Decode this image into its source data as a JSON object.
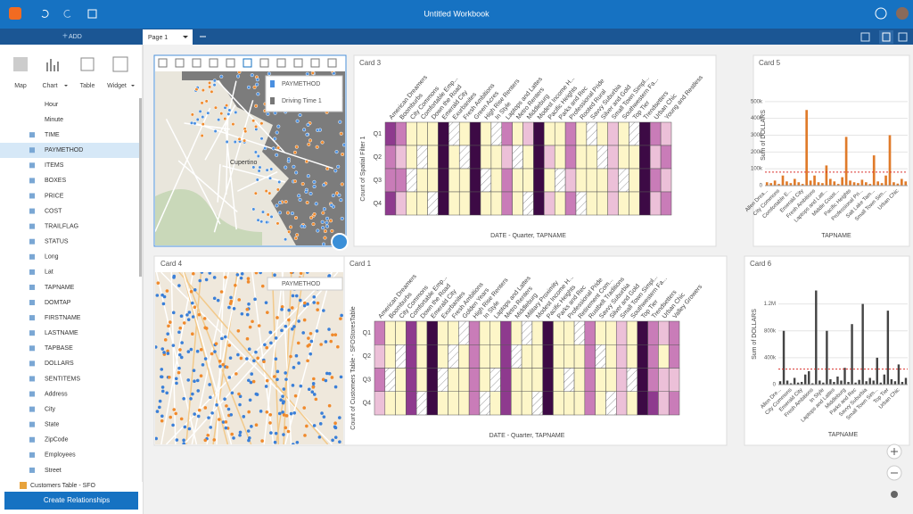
{
  "app": {
    "title": "Untitled Workbook",
    "add_button": "ADD",
    "page_tab": "Page 1",
    "tools": [
      "Map",
      "Chart",
      "Table",
      "Widget"
    ],
    "fields": [
      "Hour",
      "Minute",
      "TIME",
      "PAYMETHOD",
      "ITEMS",
      "BOXES",
      "PRICE",
      "COST",
      "TRAILFLAG",
      "STATUS",
      "Long",
      "Lat",
      "TAPNAME",
      "DOMTAP",
      "FIRSTNAME",
      "LASTNAME",
      "TAPBASE",
      "DOLLARS",
      "SENTITEMS",
      "Address",
      "City",
      "State",
      "ZipCode",
      "Employees",
      "Street"
    ],
    "dataset": "Customers Table - SFO",
    "create_button": "Create Relationships"
  },
  "maps": [
    {
      "legend": [
        "PAYMETHOD",
        "Driving Time 1"
      ],
      "place": "Cupertino"
    },
    {
      "title": "Card 4",
      "legend": [
        "PAYMETHOD"
      ]
    }
  ],
  "chart_data": [
    {
      "type": "heatmap",
      "title": "Card 3",
      "categories": [
        "American Dreamers",
        "Boomburbs",
        "City Commons",
        "Comfortable Emp...",
        "Down the Road",
        "Emerald City",
        "Exurbanites",
        "Fresh Ambitions",
        "Green Acres",
        "High Rise Renters",
        "In Style",
        "Laptops and Lattes",
        "Metro Renters",
        "Middleburg",
        "Modest Income H...",
        "Pacific Heights",
        "Parks and Rec",
        "Professional Pride",
        "Rooted Rural",
        "Savvy Suburbia",
        "Silver and Gold",
        "Small Town Simpl...",
        "Southwestern Fa...",
        "Top Tier",
        "Trendsetters",
        "Urban Chic",
        "Young and Restless"
      ],
      "rows": [
        "Q1",
        "Q2",
        "Q3",
        "Q4"
      ],
      "values": [
        [
          4,
          3,
          1,
          1,
          1,
          5,
          null,
          1,
          5,
          1,
          null,
          3,
          1,
          2,
          5,
          1,
          1,
          3,
          1,
          null,
          1,
          2,
          1,
          null,
          5,
          3,
          2
        ],
        [
          3,
          2,
          1,
          null,
          1,
          5,
          1,
          null,
          5,
          1,
          1,
          2,
          null,
          1,
          5,
          2,
          1,
          3,
          1,
          1,
          null,
          2,
          1,
          1,
          5,
          2,
          3
        ],
        [
          3,
          3,
          null,
          1,
          1,
          5,
          1,
          1,
          5,
          null,
          1,
          3,
          1,
          1,
          5,
          1,
          null,
          2,
          1,
          1,
          1,
          2,
          null,
          1,
          5,
          3,
          2
        ],
        [
          4,
          2,
          1,
          1,
          null,
          5,
          1,
          1,
          5,
          1,
          1,
          3,
          1,
          null,
          5,
          2,
          1,
          3,
          null,
          1,
          1,
          2,
          1,
          1,
          5,
          2,
          3
        ]
      ],
      "colors": [
        "#fdf6c8",
        "#ecc0d8",
        "#c97cb8",
        "#8e3a8e",
        "#3d0a45"
      ],
      "y_label": "Count of Spatial Filter 1",
      "x_label": "DATE - Quarter, TAPNAME"
    },
    {
      "type": "bar",
      "title": "Card 5",
      "categories": [
        "Allen Drea...",
        null,
        null,
        "City Commons",
        null,
        null,
        "Comfortable E...",
        null,
        null,
        "Emerald City",
        null,
        null,
        "Fresh Ambitions",
        null,
        null,
        "Laptops and Latt...",
        null,
        null,
        "Middle Coast...",
        null,
        null,
        "Pacific Heights",
        null,
        null,
        "Professional Pri...",
        null,
        null,
        "Salt Lake Tam...",
        null,
        null,
        "Small Town Sim...",
        null,
        null,
        "Urban Chic",
        null,
        null
      ],
      "values": [
        20000,
        15000,
        30000,
        10000,
        60000,
        25000,
        15000,
        40000,
        20000,
        10000,
        450000,
        30000,
        60000,
        20000,
        15000,
        120000,
        40000,
        25000,
        10000,
        50000,
        290000,
        30000,
        20000,
        15000,
        35000,
        20000,
        10000,
        180000,
        25000,
        15000,
        60000,
        300000,
        20000,
        12000,
        40000,
        25000
      ],
      "color": "#e07b2a",
      "ylim": [
        0,
        600000
      ],
      "yticks": [
        0,
        {
          "value": 100000,
          "label": "100k"
        },
        {
          "value": 200000,
          "label": "200k"
        },
        {
          "value": 300000,
          "label": "300k"
        },
        {
          "value": 400000,
          "label": "400k"
        },
        {
          "value": 500000,
          "label": "500k"
        }
      ],
      "reference_line": 80000,
      "y_label": "Sum of DOLLARS",
      "x_label": "TAPNAME"
    },
    {
      "type": "heatmap",
      "title": "Card 1",
      "categories": [
        "American Dreamers",
        "Boomburbs",
        "City Commons",
        "Comfortable Emp...",
        "Down the Road",
        "Emerald City",
        "Exurbanites",
        "Fresh Ambitions",
        "Golden Years",
        "High Rise Renters",
        "In Style",
        "Laptops and Lattes",
        "Metro Renters",
        "Middleburg",
        "Military Proximity",
        "Modest Income H...",
        "Pacific Heights",
        "Parks and Rec",
        "Professional Pride",
        "Retirement Com...",
        "Rustbelt Traditions",
        "Savvy Suburbia",
        "Silver and Gold",
        "Small Town Simpl...",
        "Southwestern Fa...",
        "Top Tier",
        "Trendsetters",
        "Urban Chic",
        "Valley Growers"
      ],
      "rows": [
        "Q1",
        "Q2",
        "Q3",
        "Q4"
      ],
      "values": [
        [
          3,
          1,
          1,
          4,
          1,
          5,
          1,
          1,
          null,
          3,
          1,
          1,
          4,
          1,
          null,
          1,
          5,
          1,
          1,
          null,
          3,
          1,
          1,
          2,
          1,
          5,
          3,
          2,
          3
        ],
        [
          2,
          1,
          null,
          4,
          1,
          5,
          1,
          null,
          1,
          3,
          1,
          1,
          4,
          null,
          1,
          1,
          5,
          1,
          1,
          1,
          3,
          null,
          1,
          2,
          1,
          5,
          3,
          1,
          3
        ],
        [
          3,
          null,
          1,
          4,
          1,
          5,
          null,
          1,
          1,
          3,
          1,
          null,
          4,
          1,
          1,
          1,
          5,
          1,
          null,
          1,
          3,
          1,
          1,
          2,
          null,
          5,
          3,
          2,
          2
        ],
        [
          2,
          1,
          1,
          4,
          null,
          5,
          1,
          1,
          1,
          3,
          null,
          1,
          4,
          1,
          1,
          null,
          5,
          1,
          1,
          1,
          3,
          1,
          null,
          2,
          1,
          5,
          4,
          2,
          3
        ]
      ],
      "colors": [
        "#fdf6c8",
        "#ecc0d8",
        "#c97cb8",
        "#8e3a8e",
        "#3d0a45"
      ],
      "y_label": "Count of Customers Table - SFOStoresTable",
      "x_label": "DATE - Quarter, TAPNAME"
    },
    {
      "type": "bar",
      "title": "Card 6",
      "categories": [
        "Allen Dre...",
        null,
        null,
        "City Commons",
        null,
        null,
        "Emerald City",
        null,
        null,
        "Fresh Ambitions",
        null,
        null,
        "In Style",
        null,
        null,
        "Laptops and Lattes",
        null,
        null,
        "Middleburg",
        null,
        null,
        "Parks and Rec",
        null,
        null,
        "Savvy Suburbia",
        null,
        null,
        "Small Town Sim...",
        null,
        null,
        "Top Tier",
        null,
        null,
        "Urban Chic",
        null,
        null
      ],
      "values": [
        50000,
        800000,
        60000,
        20000,
        100000,
        30000,
        40000,
        150000,
        200000,
        20000,
        1400000,
        60000,
        30000,
        800000,
        80000,
        40000,
        120000,
        60000,
        250000,
        40000,
        900000,
        30000,
        70000,
        1200000,
        50000,
        100000,
        60000,
        400000,
        30000,
        150000,
        1100000,
        80000,
        50000,
        300000,
        40000,
        100000
      ],
      "color": "#444444",
      "ylim": [
        0,
        1500000
      ],
      "yticks": [
        0,
        {
          "value": 400000,
          "label": "400k"
        },
        {
          "value": 800000,
          "label": "800k"
        },
        {
          "value": 1200000,
          "label": "1.2M"
        }
      ],
      "reference_line": 230000,
      "y_label": "Sum of DOLLARS",
      "x_label": "TAPNAME"
    }
  ]
}
